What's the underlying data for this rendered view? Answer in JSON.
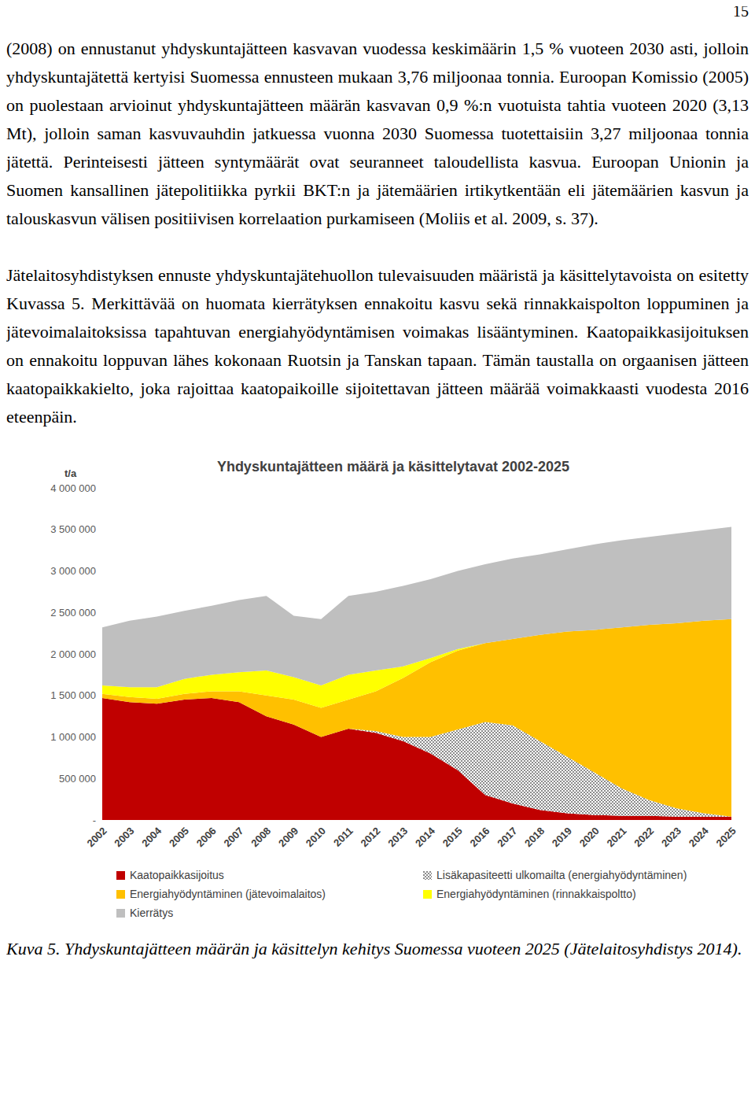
{
  "page_number": "15",
  "paragraphs": [
    "(2008) on ennustanut yhdyskuntajätteen kasvavan vuodessa keskimäärin 1,5 % vuoteen 2030 asti, jolloin yhdyskuntajätettä kertyisi Suomessa ennusteen mukaan 3,76 miljoonaa tonnia. Euroopan Komissio (2005) on puolestaan arvioinut yhdyskuntajätteen määrän kasvavan 0,9 %:n vuotuista tahtia vuoteen 2020 (3,13 Mt), jolloin saman kasvuvauhdin jatkuessa vuonna 2030 Suomessa tuotettaisiin 3,27 miljoonaa tonnia jätettä. Perinteisesti jätteen syntymäärät ovat seuranneet taloudellista kasvua. Euroopan Unionin ja Suomen kansallinen jätepolitiikka pyrkii BKT:n ja jätemäärien irtikytkentään eli jätemäärien kasvun ja talouskasvun välisen positiivisen korrelaation purkamiseen (Moliis et al. 2009, s. 37).",
    "Jätelaitosyhdistyksen ennuste yhdyskuntajätehuollon tulevaisuuden määristä ja käsittelytavoista on esitetty Kuvassa 5. Merkittävää on huomata kierrätyksen ennakoitu kasvu sekä rinnakkaispolton loppuminen ja jätevoimalaitoksissa tapahtuvan energiahyödyntämisen voimakas lisääntyminen. Kaatopaikkasijoituksen on ennakoitu loppuvan lähes kokonaan Ruotsin ja Tanskan tapaan. Tämän taustalla on orgaanisen jätteen kaatopaikkakielto, joka rajoittaa kaatopaikoille sijoitettavan jätteen määrää voimakkaasti vuodesta 2016 eteenpäin."
  ],
  "chart_data": {
    "type": "area",
    "stacked": true,
    "title": "Yhdyskuntajätteen määrä ja käsittelytavat 2002-2025",
    "ylabel": "t/a",
    "categories": [
      "2002",
      "2003",
      "2004",
      "2005",
      "2006",
      "2007",
      "2008",
      "2009",
      "2010",
      "2011",
      "2012",
      "2013",
      "2014",
      "2015",
      "2016",
      "2017",
      "2018",
      "2019",
      "2020",
      "2021",
      "2022",
      "2023",
      "2024",
      "2025"
    ],
    "series": [
      {
        "name": "Kaatopaikkasijoitus",
        "color": "#c00000",
        "values": [
          1470000,
          1420000,
          1400000,
          1450000,
          1470000,
          1420000,
          1250000,
          1150000,
          1000000,
          1100000,
          1050000,
          950000,
          800000,
          600000,
          300000,
          200000,
          120000,
          80000,
          60000,
          50000,
          50000,
          40000,
          40000,
          40000
        ]
      },
      {
        "name": "Lisäkapasiteetti ulkomailta (energiahyödyntäminen)",
        "color": "#8c8c8c",
        "line_style": "hatched",
        "values": [
          0,
          0,
          0,
          0,
          0,
          0,
          0,
          0,
          0,
          0,
          20000,
          50000,
          200000,
          490000,
          880000,
          940000,
          830000,
          680000,
          510000,
          330000,
          190000,
          100000,
          40000,
          0
        ]
      },
      {
        "name": "Energiahyödyntäminen (jätevoimalaitos)",
        "color": "#ffc000",
        "values": [
          50000,
          60000,
          60000,
          70000,
          80000,
          130000,
          250000,
          300000,
          350000,
          350000,
          480000,
          710000,
          900000,
          950000,
          950000,
          1040000,
          1280000,
          1510000,
          1720000,
          1940000,
          2110000,
          2230000,
          2320000,
          2380000
        ]
      },
      {
        "name": "Energiahyödyntäminen (rinnakkaispoltto)",
        "color": "#ffff00",
        "values": [
          100000,
          120000,
          140000,
          180000,
          200000,
          230000,
          300000,
          270000,
          270000,
          300000,
          250000,
          140000,
          50000,
          20000,
          0,
          0,
          0,
          0,
          0,
          0,
          0,
          0,
          0,
          0
        ]
      },
      {
        "name": "Kierrätys",
        "color": "#bfbfbf",
        "values": [
          700000,
          800000,
          850000,
          820000,
          830000,
          870000,
          900000,
          740000,
          800000,
          950000,
          950000,
          970000,
          950000,
          940000,
          950000,
          970000,
          970000,
          990000,
          1030000,
          1050000,
          1060000,
          1080000,
          1090000,
          1110000
        ]
      }
    ],
    "ylim": [
      0,
      4000000
    ],
    "yticks": [
      {
        "value": 0,
        "label": "-"
      },
      {
        "value": 500000,
        "label": "500 000"
      },
      {
        "value": 1000000,
        "label": "1 000 000"
      },
      {
        "value": 1500000,
        "label": "1 500 000"
      },
      {
        "value": 2000000,
        "label": "2 000 000"
      },
      {
        "value": 2500000,
        "label": "2 500 000"
      },
      {
        "value": 3000000,
        "label": "3 000 000"
      },
      {
        "value": 3500000,
        "label": "3 500 000"
      },
      {
        "value": 4000000,
        "label": "4 000 000"
      }
    ],
    "grid": false,
    "legend": "bottom"
  },
  "caption": "Kuva 5. Yhdyskuntajätteen määrän ja käsittelyn kehitys Suomessa vuoteen 2025 (Jätelaitosyhdistys 2014)."
}
